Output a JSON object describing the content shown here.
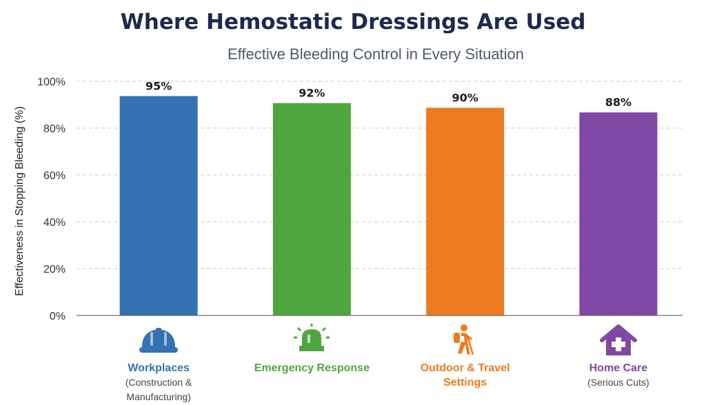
{
  "chart_data": {
    "type": "bar",
    "title": "Where Hemostatic Dressings Are Used",
    "subtitle": "Effective Bleeding Control in Every Situation",
    "ylabel": "Effectiveness in Stopping Bleeding (%)",
    "ylim": [
      0,
      100
    ],
    "yticks": [
      "0%",
      "20%",
      "40%",
      "60%",
      "80%",
      "100%"
    ],
    "grid": true,
    "categories": [
      {
        "name": "Workplaces",
        "note": "(Construction & Manufacturing)",
        "icon": "hard-hat-icon",
        "color": "#3472b4"
      },
      {
        "name": "Emergency Response",
        "note": "",
        "icon": "siren-icon",
        "color": "#4fa63f"
      },
      {
        "name": "Outdoor & Travel Settings",
        "note": "",
        "icon": "hiker-icon",
        "color": "#ee7a1d"
      },
      {
        "name": "Home Care",
        "note": "(Serious Cuts)",
        "icon": "home-medical-icon",
        "color": "#8147a4"
      }
    ],
    "values": [
      95,
      92,
      90,
      88
    ],
    "value_labels": [
      "95%",
      "92%",
      "90%",
      "88%"
    ]
  }
}
